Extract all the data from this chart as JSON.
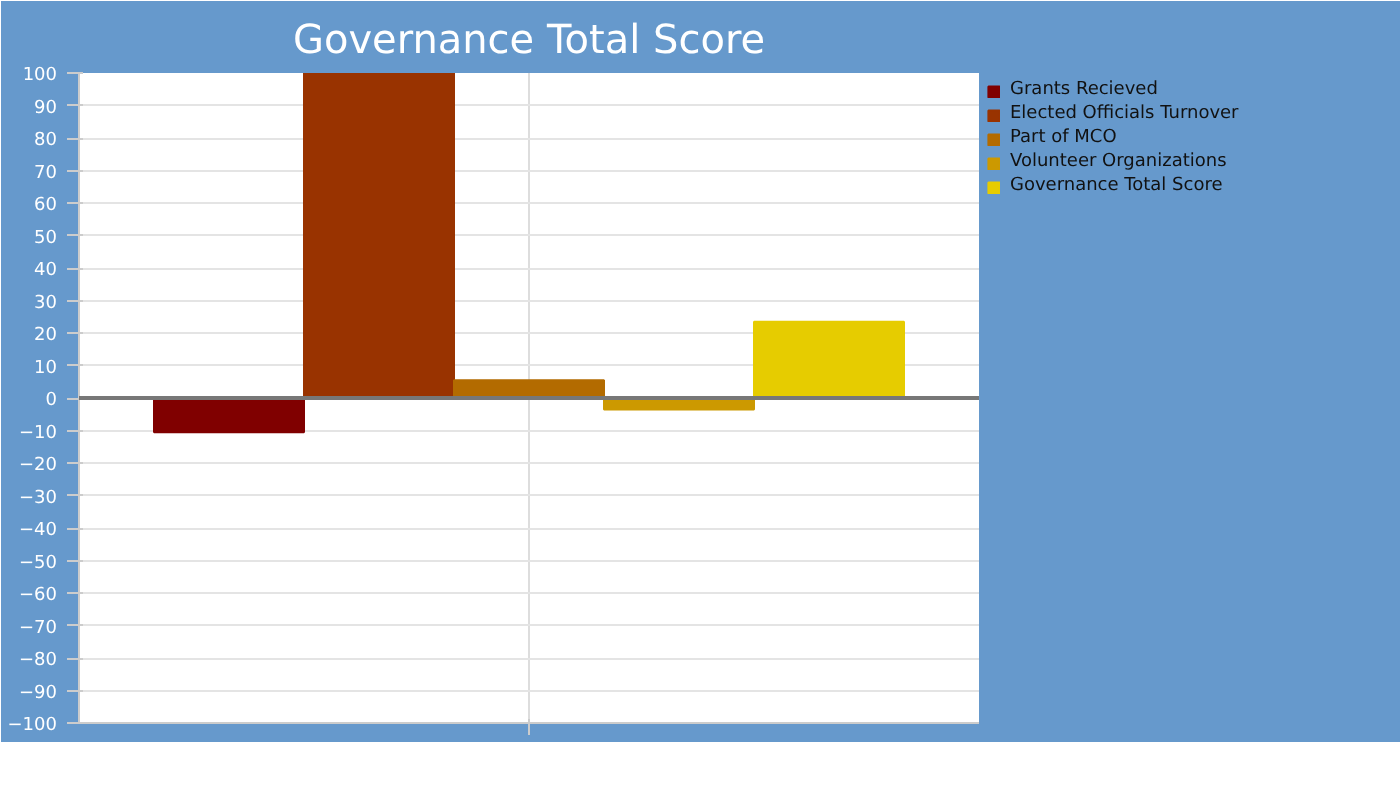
{
  "chart_data": {
    "type": "bar",
    "title": "Governance Total Score",
    "categories": [
      null
    ],
    "series": [
      {
        "name": "Grants Recieved",
        "color": "#800000",
        "values": [
          -10.5
        ]
      },
      {
        "name": "Elected Officials Turnover",
        "color": "#993300",
        "values": [
          100
        ]
      },
      {
        "name": "Part of MCO",
        "color": "#b36b00",
        "values": [
          5.5
        ]
      },
      {
        "name": "Volunteer Organizations",
        "color": "#cc9900",
        "values": [
          -3.5
        ]
      },
      {
        "name": "Governance Total Score",
        "color": "#e6cc00",
        "values": [
          23.5
        ]
      }
    ],
    "ylim": [
      -100,
      100
    ],
    "yticks": [
      -100,
      -90,
      -80,
      -70,
      -60,
      -50,
      -40,
      -30,
      -20,
      -10,
      0,
      10,
      20,
      30,
      40,
      50,
      60,
      70,
      80,
      90,
      100
    ],
    "grid": true,
    "legend": "top right"
  }
}
